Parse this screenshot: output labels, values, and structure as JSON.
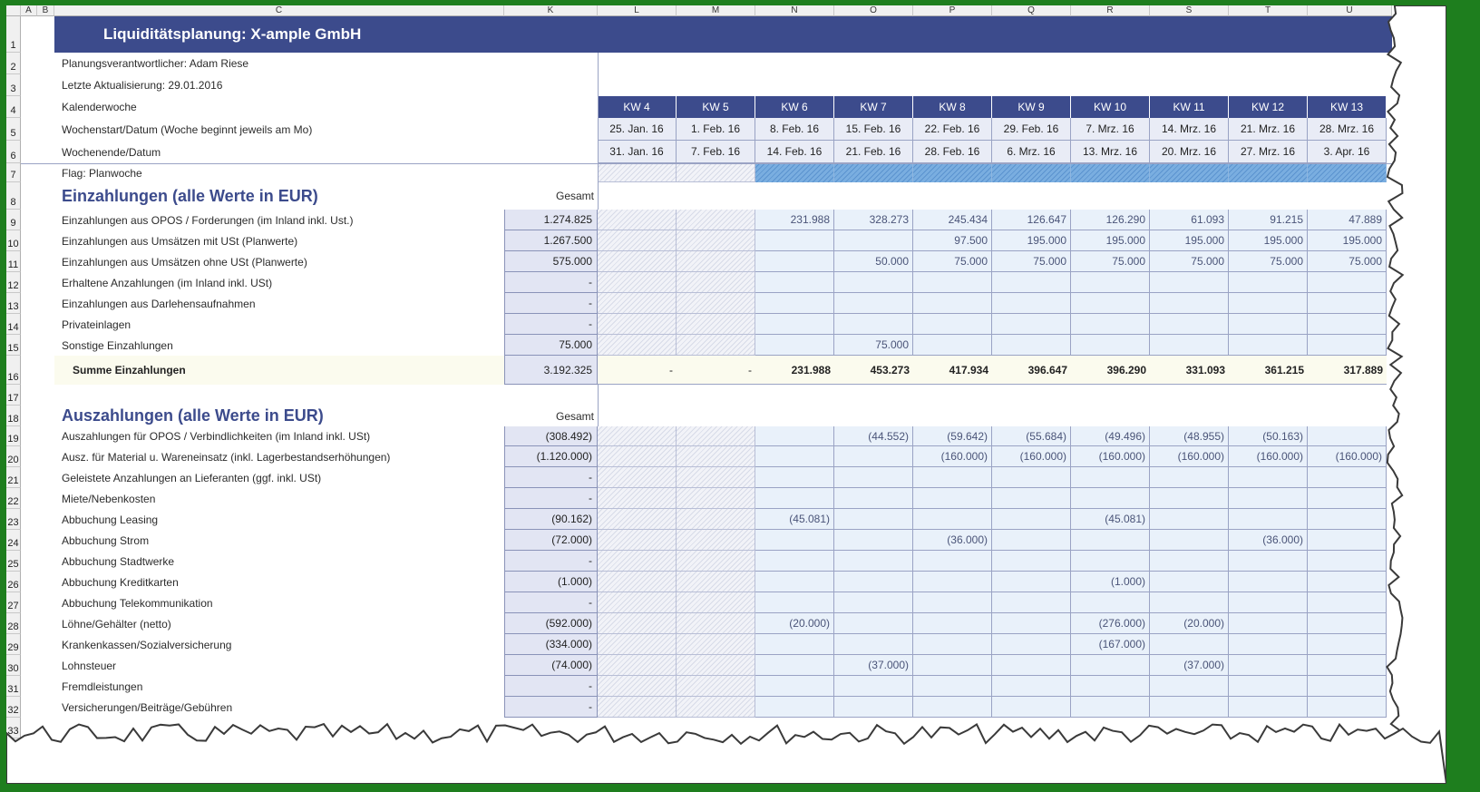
{
  "columns": [
    "A",
    "B",
    "C",
    "K",
    "L",
    "M",
    "N",
    "O",
    "P",
    "Q",
    "R",
    "S",
    "T",
    "U"
  ],
  "title": "Liquiditätsplanung: X-ample GmbH",
  "meta": {
    "responsible": "Planungsverantwortlicher: Adam Riese",
    "last_update": "Letzte Aktualisierung: 29.01.2016",
    "kw_label": "Kalenderwoche",
    "week_start_label": "Wochenstart/Datum  (Woche beginnt jeweils am Mo)",
    "week_end_label": "Wochenende/Datum",
    "flag_label": "Flag: Planwoche"
  },
  "weeks": [
    "KW 4",
    "KW 5",
    "KW 6",
    "KW 7",
    "KW 8",
    "KW 9",
    "KW 10",
    "KW 11",
    "KW 12",
    "KW 13"
  ],
  "week_starts": [
    "25. Jan. 16",
    "1. Feb. 16",
    "8. Feb. 16",
    "15. Feb. 16",
    "22. Feb. 16",
    "29. Feb. 16",
    "7. Mrz. 16",
    "14. Mrz. 16",
    "21. Mrz. 16",
    "28. Mrz. 16"
  ],
  "week_ends": [
    "31. Jan. 16",
    "7. Feb. 16",
    "14. Feb. 16",
    "21. Feb. 16",
    "28. Feb. 16",
    "6. Mrz. 16",
    "13. Mrz. 16",
    "20. Mrz. 16",
    "27. Mrz. 16",
    "3. Apr. 16"
  ],
  "einzahlungen": {
    "heading": "Einzahlungen (alle Werte in EUR)",
    "gesamt_label": "Gesamt",
    "rows": [
      {
        "label": "Einzahlungen aus OPOS / Forderungen (im Inland inkl. Ust.)",
        "total": "1.274.825",
        "values": [
          "",
          "",
          "231.988",
          "328.273",
          "245.434",
          "126.647",
          "126.290",
          "61.093",
          "91.215",
          "47.889"
        ]
      },
      {
        "label": "Einzahlungen aus Umsätzen mit USt (Planwerte)",
        "total": "1.267.500",
        "values": [
          "",
          "",
          "",
          "",
          "97.500",
          "195.000",
          "195.000",
          "195.000",
          "195.000",
          "195.000"
        ]
      },
      {
        "label": "Einzahlungen aus Umsätzen ohne USt (Planwerte)",
        "total": "575.000",
        "values": [
          "",
          "",
          "",
          "50.000",
          "75.000",
          "75.000",
          "75.000",
          "75.000",
          "75.000",
          "75.000"
        ]
      },
      {
        "label": "Erhaltene Anzahlungen (im Inland inkl. USt)",
        "total": "-",
        "values": [
          "",
          "",
          "",
          "",
          "",
          "",
          "",
          "",
          "",
          ""
        ]
      },
      {
        "label": "Einzahlungen aus Darlehensaufnahmen",
        "total": "-",
        "values": [
          "",
          "",
          "",
          "",
          "",
          "",
          "",
          "",
          "",
          ""
        ]
      },
      {
        "label": "Privateinlagen",
        "total": "-",
        "values": [
          "",
          "",
          "",
          "",
          "",
          "",
          "",
          "",
          "",
          ""
        ]
      },
      {
        "label": "Sonstige Einzahlungen",
        "total": "75.000",
        "values": [
          "",
          "",
          "",
          "75.000",
          "",
          "",
          "",
          "",
          "",
          ""
        ]
      }
    ],
    "sum": {
      "label": "Summe Einzahlungen",
      "total": "3.192.325",
      "values": [
        "-",
        "-",
        "231.988",
        "453.273",
        "417.934",
        "396.647",
        "396.290",
        "331.093",
        "361.215",
        "317.889"
      ]
    }
  },
  "auszahlungen": {
    "heading": "Auszahlungen (alle Werte in EUR)",
    "gesamt_label": "Gesamt",
    "rows": [
      {
        "label": "Auszahlungen für OPOS / Verbindlichkeiten (im Inland inkl. USt)",
        "total": "(308.492)",
        "values": [
          "",
          "",
          "",
          "(44.552)",
          "(59.642)",
          "(55.684)",
          "(49.496)",
          "(48.955)",
          "(50.163)",
          ""
        ]
      },
      {
        "label": "Ausz. für Material u. Wareneinsatz (inkl. Lagerbestandserhöhungen)",
        "total": "(1.120.000)",
        "values": [
          "",
          "",
          "",
          "",
          "(160.000)",
          "(160.000)",
          "(160.000)",
          "(160.000)",
          "(160.000)",
          "(160.000)"
        ]
      },
      {
        "label": "Geleistete Anzahlungen an Lieferanten (ggf. inkl. USt)",
        "total": "-",
        "values": [
          "",
          "",
          "",
          "",
          "",
          "",
          "",
          "",
          "",
          ""
        ]
      },
      {
        "label": "Miete/Nebenkosten",
        "total": "-",
        "values": [
          "",
          "",
          "",
          "",
          "",
          "",
          "",
          "",
          "",
          ""
        ]
      },
      {
        "label": "Abbuchung Leasing",
        "total": "(90.162)",
        "values": [
          "",
          "",
          "(45.081)",
          "",
          "",
          "",
          "(45.081)",
          "",
          "",
          ""
        ]
      },
      {
        "label": "Abbuchung Strom",
        "total": "(72.000)",
        "values": [
          "",
          "",
          "",
          "",
          "(36.000)",
          "",
          "",
          "",
          "(36.000)",
          ""
        ]
      },
      {
        "label": "Abbuchung Stadtwerke",
        "total": "-",
        "values": [
          "",
          "",
          "",
          "",
          "",
          "",
          "",
          "",
          "",
          ""
        ]
      },
      {
        "label": "Abbuchung Kreditkarten",
        "total": "(1.000)",
        "values": [
          "",
          "",
          "",
          "",
          "",
          "",
          "(1.000)",
          "",
          "",
          ""
        ]
      },
      {
        "label": "Abbuchung Telekommunikation",
        "total": "-",
        "values": [
          "",
          "",
          "",
          "",
          "",
          "",
          "",
          "",
          "",
          ""
        ]
      },
      {
        "label": "Löhne/Gehälter (netto)",
        "total": "(592.000)",
        "values": [
          "",
          "",
          "(20.000)",
          "",
          "",
          "",
          "(276.000)",
          "(20.000)",
          "",
          ""
        ]
      },
      {
        "label": "Krankenkassen/Sozialversicherung",
        "total": "(334.000)",
        "values": [
          "",
          "",
          "",
          "",
          "",
          "",
          "(167.000)",
          "",
          "",
          ""
        ]
      },
      {
        "label": "Lohnsteuer",
        "total": "(74.000)",
        "values": [
          "",
          "",
          "",
          "(37.000)",
          "",
          "",
          "",
          "(37.000)",
          "",
          ""
        ]
      },
      {
        "label": "Fremdleistungen",
        "total": "-",
        "values": [
          "",
          "",
          "",
          "",
          "",
          "",
          "",
          "",
          "",
          ""
        ]
      },
      {
        "label": "Versicherungen/Beiträge/Gebühren",
        "total": "-",
        "values": [
          "",
          "",
          "",
          "",
          "",
          "",
          "",
          "",
          "",
          ""
        ]
      }
    ]
  }
}
